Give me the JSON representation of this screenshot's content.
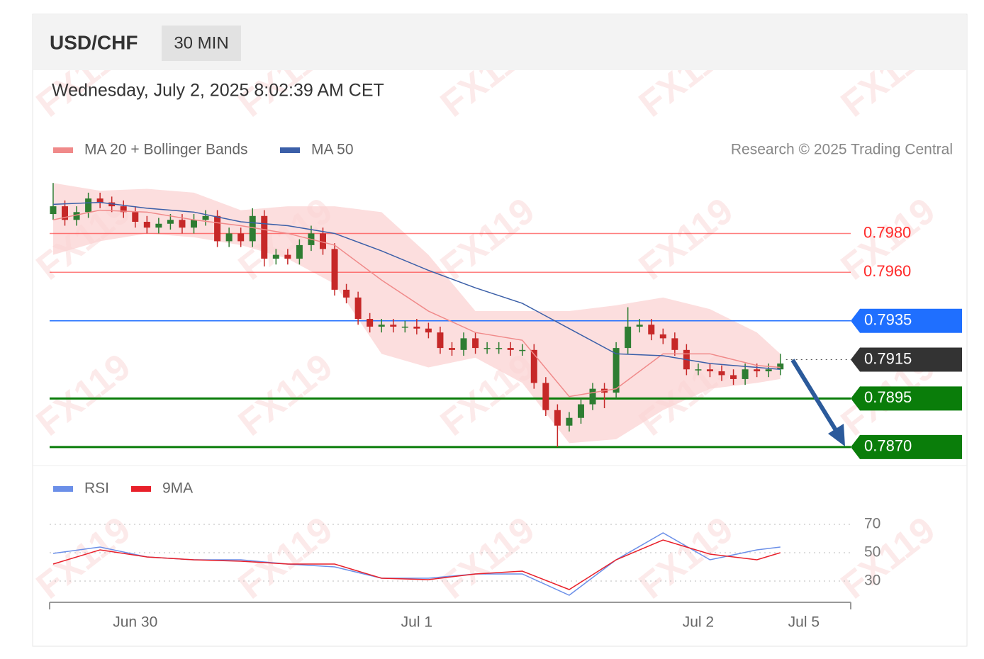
{
  "header": {
    "symbol": "USD/CHF",
    "interval": "30 MIN",
    "timestamp": "Wednesday, July 2, 2025 8:02:39 AM CET",
    "credit": "Research © 2025 Trading Central",
    "watermark": "FX119"
  },
  "chart_data": [
    {
      "type": "candlestick",
      "xlim": [
        -0.3,
        68
      ],
      "ylim": [
        0.7863,
        0.8009
      ],
      "up_color": "#2e7d32",
      "down_color": "#c62828",
      "open": [
        0.799,
        0.7994,
        0.7987,
        0.7991,
        0.7998,
        0.7996,
        0.7994,
        0.7991,
        0.7986,
        0.7983,
        0.7985,
        0.7987,
        0.7983,
        0.7987,
        0.7989,
        0.7976,
        0.798,
        0.7976,
        0.7989,
        0.7967,
        0.7969,
        0.7967,
        0.7974,
        0.798,
        0.7972,
        0.7951,
        0.7947,
        0.7936,
        0.7932,
        0.7933,
        0.7932,
        0.7932,
        0.7931,
        0.7929,
        0.7921,
        0.792,
        0.7926,
        0.7921,
        0.7921,
        0.7921,
        0.792,
        0.792,
        0.7903,
        0.7889,
        0.7881,
        0.7885,
        0.7892,
        0.79,
        0.7898,
        0.7921,
        0.7932,
        0.7933,
        0.7928,
        0.7926,
        0.792,
        0.791,
        0.791,
        0.7909,
        0.7907,
        0.7905,
        0.791,
        0.7909,
        0.791
      ],
      "high": [
        0.8006,
        0.7997,
        0.7994,
        0.8001,
        0.8001,
        0.7999,
        0.7997,
        0.7994,
        0.7989,
        0.7988,
        0.799,
        0.799,
        0.799,
        0.7992,
        0.7992,
        0.7983,
        0.7983,
        0.7993,
        0.7992,
        0.7972,
        0.7972,
        0.7977,
        0.7984,
        0.7983,
        0.7975,
        0.7954,
        0.795,
        0.7939,
        0.7936,
        0.7936,
        0.7935,
        0.7936,
        0.7934,
        0.7932,
        0.7924,
        0.7929,
        0.7929,
        0.7924,
        0.7924,
        0.7924,
        0.7923,
        0.7923,
        0.7906,
        0.7892,
        0.7888,
        0.7895,
        0.7903,
        0.7903,
        0.7924,
        0.7942,
        0.7936,
        0.7936,
        0.7931,
        0.7929,
        0.7923,
        0.7913,
        0.7913,
        0.7912,
        0.791,
        0.7913,
        0.7913,
        0.7913,
        0.7918
      ],
      "low": [
        0.7987,
        0.7984,
        0.7984,
        0.7988,
        0.7993,
        0.7991,
        0.7988,
        0.7983,
        0.798,
        0.798,
        0.7982,
        0.798,
        0.798,
        0.7984,
        0.7973,
        0.7973,
        0.7973,
        0.7973,
        0.7963,
        0.7964,
        0.7964,
        0.7964,
        0.7971,
        0.7969,
        0.7948,
        0.7944,
        0.7933,
        0.7929,
        0.7929,
        0.7929,
        0.7929,
        0.7928,
        0.7926,
        0.7918,
        0.7917,
        0.7917,
        0.7918,
        0.7918,
        0.7918,
        0.7917,
        0.7917,
        0.79,
        0.7886,
        0.787,
        0.7878,
        0.7882,
        0.7889,
        0.789,
        0.7895,
        0.7918,
        0.7929,
        0.7925,
        0.7923,
        0.7917,
        0.7907,
        0.7907,
        0.7906,
        0.7904,
        0.7902,
        0.7902,
        0.7906,
        0.7906,
        0.7907
      ],
      "close": [
        0.7994,
        0.7987,
        0.7991,
        0.7998,
        0.7996,
        0.7994,
        0.7991,
        0.7986,
        0.7983,
        0.7985,
        0.7987,
        0.7983,
        0.7987,
        0.7989,
        0.7976,
        0.798,
        0.7976,
        0.7989,
        0.7967,
        0.7969,
        0.7967,
        0.7974,
        0.798,
        0.7972,
        0.7951,
        0.7947,
        0.7936,
        0.7932,
        0.7933,
        0.7932,
        0.7932,
        0.7931,
        0.7929,
        0.7921,
        0.792,
        0.7926,
        0.7921,
        0.7921,
        0.7921,
        0.792,
        0.792,
        0.7903,
        0.7889,
        0.7881,
        0.7885,
        0.7892,
        0.79,
        0.7898,
        0.7921,
        0.7932,
        0.7933,
        0.7928,
        0.7926,
        0.792,
        0.791,
        0.791,
        0.7909,
        0.7907,
        0.7905,
        0.791,
        0.7909,
        0.791,
        0.7913
      ],
      "series": [
        {
          "name": "MA 20 + Bollinger Bands",
          "color": "#f08a8a",
          "band_color": "#fbd3d3",
          "x": [
            0,
            4,
            8,
            12,
            16,
            20,
            24,
            28,
            32,
            36,
            40,
            44,
            48,
            52,
            56,
            60,
            62
          ],
          "values": [
            0.7987,
            0.7992,
            0.7991,
            0.7987,
            0.7984,
            0.798,
            0.7974,
            0.7956,
            0.794,
            0.7929,
            0.7925,
            0.7896,
            0.79,
            0.7918,
            0.7918,
            0.7912,
            0.7911
          ],
          "upper": [
            0.8006,
            0.8002,
            0.8003,
            0.8001,
            0.7992,
            0.7994,
            0.7994,
            0.7991,
            0.7969,
            0.794,
            0.794,
            0.794,
            0.7943,
            0.7947,
            0.7941,
            0.7929,
            0.7918
          ],
          "lower": [
            0.7969,
            0.7976,
            0.798,
            0.7978,
            0.7974,
            0.7967,
            0.7954,
            0.7918,
            0.7911,
            0.7916,
            0.7903,
            0.7872,
            0.7874,
            0.7889,
            0.79,
            0.7903,
            0.7905
          ]
        },
        {
          "name": "MA 50",
          "color": "#3b5fa8",
          "x": [
            0,
            4,
            8,
            12,
            16,
            20,
            24,
            28,
            32,
            36,
            40,
            44,
            48,
            52,
            56,
            60,
            62
          ],
          "values": [
            0.7995,
            0.7996,
            0.7993,
            0.7991,
            0.7986,
            0.7984,
            0.798,
            0.7971,
            0.7961,
            0.7952,
            0.7944,
            0.7931,
            0.7918,
            0.7917,
            0.7913,
            0.7911,
            0.791
          ]
        }
      ],
      "levels": [
        {
          "value": 0.798,
          "label": "0.7980",
          "color": "#ff2b2b",
          "style": "line"
        },
        {
          "value": 0.796,
          "label": "0.7960",
          "color": "#ff2b2b",
          "style": "line"
        },
        {
          "value": 0.7935,
          "label": "0.7935",
          "color": "#1f6fff",
          "style": "box"
        },
        {
          "value": 0.7915,
          "label": "0.7915",
          "color": "#333333",
          "style": "current"
        },
        {
          "value": 0.7895,
          "label": "0.7895",
          "color": "#0a7d0a",
          "style": "box"
        },
        {
          "value": 0.787,
          "label": "0.7870",
          "color": "#0a7d0a",
          "style": "box"
        }
      ]
    },
    {
      "type": "line",
      "xlim": [
        -0.3,
        68
      ],
      "ylim": [
        15,
        90
      ],
      "yticks": [
        30,
        50,
        70
      ],
      "xticks": [
        {
          "value": 7,
          "label": "Jun 30"
        },
        {
          "value": 31,
          "label": "Jul 1"
        },
        {
          "value": 55,
          "label": "Jul 2"
        },
        {
          "value": 64,
          "label": "Jul 5"
        }
      ],
      "series": [
        {
          "name": "RSI",
          "color": "#6b8fe8",
          "x": [
            0,
            4,
            8,
            12,
            16,
            20,
            24,
            28,
            32,
            36,
            40,
            44,
            48,
            52,
            56,
            60,
            62
          ],
          "values": [
            49.5,
            54,
            47,
            45,
            45,
            42,
            40,
            32,
            32,
            35,
            35,
            20,
            45,
            64,
            45,
            52,
            54
          ]
        },
        {
          "name": "9MA",
          "color": "#e8202a",
          "x": [
            0,
            4,
            8,
            12,
            16,
            20,
            24,
            28,
            32,
            36,
            40,
            44,
            48,
            52,
            56,
            60,
            62
          ],
          "values": [
            42,
            52,
            47,
            45,
            44,
            42,
            42,
            32,
            31,
            35,
            37,
            24,
            45,
            59,
            49,
            45,
            50
          ]
        }
      ]
    }
  ]
}
